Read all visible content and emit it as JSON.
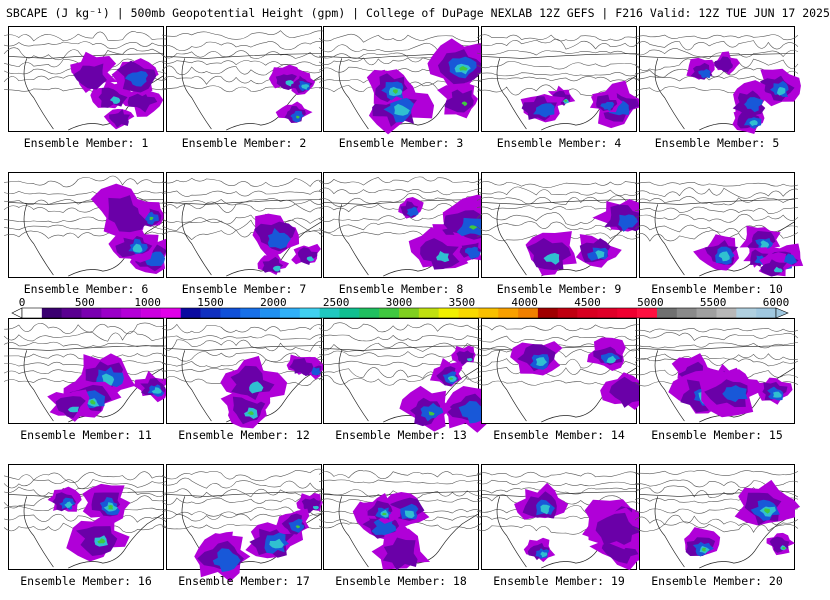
{
  "title": "SBCAPE (J kg⁻¹) | 500mb Geopotential Height (gpm) | College of DuPage NEXLAB 12Z GEFS | F216 Valid: 12Z TUE JUN 17 2025",
  "colorbar": {
    "ticks": [
      "0",
      "500",
      "1000",
      "1500",
      "2000",
      "2500",
      "3000",
      "3500",
      "4000",
      "4500",
      "5000",
      "5500",
      "6000"
    ],
    "colors": [
      "#ffffff",
      "#3a0070",
      "#5a0090",
      "#7a00b0",
      "#9a00c8",
      "#b400d8",
      "#cc00e0",
      "#e000e8",
      "#0a0aa0",
      "#1030c0",
      "#1050d8",
      "#1870e8",
      "#2090f0",
      "#30b0f8",
      "#40d0f0",
      "#20c8c0",
      "#10c090",
      "#20c060",
      "#40c840",
      "#80d020",
      "#c0e010",
      "#f0f000",
      "#f8d800",
      "#f8c000",
      "#f8a000",
      "#f08000",
      "#a00000",
      "#c00010",
      "#d80020",
      "#e00028",
      "#f00030",
      "#ff1040",
      "#707070",
      "#8a8a8a",
      "#a0a0a0",
      "#b8b8b8",
      "#b0d0e0",
      "#a0c8e0"
    ]
  },
  "members": [
    {
      "label": "Ensemble Member: 1"
    },
    {
      "label": "Ensemble Member: 2"
    },
    {
      "label": "Ensemble Member: 3"
    },
    {
      "label": "Ensemble Member: 4"
    },
    {
      "label": "Ensemble Member: 5"
    },
    {
      "label": "Ensemble Member: 6"
    },
    {
      "label": "Ensemble Member: 7"
    },
    {
      "label": "Ensemble Member: 8"
    },
    {
      "label": "Ensemble Member: 9"
    },
    {
      "label": "Ensemble Member: 10"
    },
    {
      "label": "Ensemble Member: 11"
    },
    {
      "label": "Ensemble Member: 12"
    },
    {
      "label": "Ensemble Member: 13"
    },
    {
      "label": "Ensemble Member: 14"
    },
    {
      "label": "Ensemble Member: 15"
    },
    {
      "label": "Ensemble Member: 16"
    },
    {
      "label": "Ensemble Member: 17"
    },
    {
      "label": "Ensemble Member: 18"
    },
    {
      "label": "Ensemble Member: 19"
    },
    {
      "label": "Ensemble Member: 20"
    }
  ]
}
